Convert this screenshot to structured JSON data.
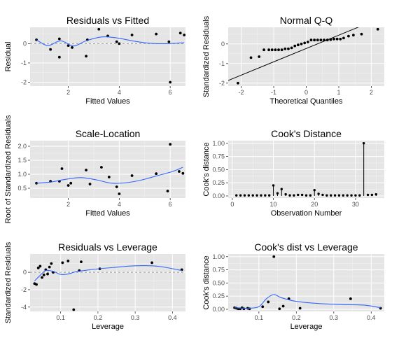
{
  "chart_data": [
    {
      "type": "scatter",
      "title": "Residuals vs Fitted",
      "xlabel": "Fitted Values",
      "ylabel": "Residual",
      "xlim": [
        0.5,
        6.6
      ],
      "ylim": [
        -2.2,
        0.85
      ],
      "xticks": [
        2,
        4,
        6
      ],
      "yticks": [
        -2,
        -1,
        0
      ],
      "hline": 0,
      "points": [
        [
          0.75,
          0.2
        ],
        [
          1.3,
          -0.3
        ],
        [
          1.65,
          -0.7
        ],
        [
          1.65,
          0.25
        ],
        [
          2.0,
          -0.1
        ],
        [
          2.15,
          -0.2
        ],
        [
          2.7,
          -0.65
        ],
        [
          2.75,
          0.2
        ],
        [
          3.2,
          0.75
        ],
        [
          3.55,
          0.4
        ],
        [
          3.9,
          0.1
        ],
        [
          4.0,
          0.0
        ],
        [
          4.5,
          0.45
        ],
        [
          5.45,
          0.5
        ],
        [
          5.95,
          0.1
        ],
        [
          6.0,
          -2.0
        ],
        [
          6.4,
          0.55
        ],
        [
          6.55,
          0.45
        ]
      ],
      "smooth": [
        [
          0.75,
          0.2
        ],
        [
          1.2,
          -0.1
        ],
        [
          1.7,
          0.15
        ],
        [
          2.2,
          -0.12
        ],
        [
          2.7,
          0.15
        ],
        [
          3.3,
          0.35
        ],
        [
          3.9,
          0.3
        ],
        [
          4.5,
          0.15
        ],
        [
          5.2,
          0.02
        ],
        [
          5.9,
          0.0
        ],
        [
          6.55,
          0.05
        ]
      ]
    },
    {
      "type": "scatter",
      "title": "Normal Q-Q",
      "xlabel": "Theoretical Quantiles",
      "ylabel": "Standardized Residuals",
      "xlim": [
        -2.4,
        2.4
      ],
      "ylim": [
        -2.15,
        0.85
      ],
      "xticks": [
        -2,
        -1,
        0,
        1,
        2
      ],
      "yticks": [
        -2,
        -1,
        0
      ],
      "abline": [
        [
          -2.6,
          -2.0
        ],
        [
          2.4,
          1.4
        ]
      ],
      "points": [
        [
          -2.1,
          -2.0
        ],
        [
          -1.7,
          -0.7
        ],
        [
          -1.45,
          -0.65
        ],
        [
          -1.3,
          -0.3
        ],
        [
          -1.15,
          -0.3
        ],
        [
          -1.05,
          -0.3
        ],
        [
          -0.95,
          -0.3
        ],
        [
          -0.85,
          -0.3
        ],
        [
          -0.75,
          -0.3
        ],
        [
          -0.65,
          -0.25
        ],
        [
          -0.55,
          -0.25
        ],
        [
          -0.45,
          -0.2
        ],
        [
          -0.35,
          -0.1
        ],
        [
          -0.25,
          -0.05
        ],
        [
          -0.15,
          0.0
        ],
        [
          -0.05,
          0.05
        ],
        [
          0.05,
          0.1
        ],
        [
          0.15,
          0.2
        ],
        [
          0.25,
          0.2
        ],
        [
          0.35,
          0.2
        ],
        [
          0.45,
          0.2
        ],
        [
          0.55,
          0.2
        ],
        [
          0.65,
          0.2
        ],
        [
          0.75,
          0.22
        ],
        [
          0.85,
          0.25
        ],
        [
          0.95,
          0.25
        ],
        [
          1.05,
          0.25
        ],
        [
          1.15,
          0.3
        ],
        [
          1.3,
          0.4
        ],
        [
          1.45,
          0.45
        ],
        [
          1.7,
          0.5
        ],
        [
          2.2,
          0.75
        ]
      ]
    },
    {
      "type": "scatter",
      "title": "Scale-Location",
      "xlabel": "Fitted Values",
      "ylabel": "Root of Standardized Residuals",
      "xlim": [
        0.5,
        6.6
      ],
      "ylim": [
        0.15,
        2.2
      ],
      "xticks": [
        2,
        4,
        6
      ],
      "yticks": [
        0.5,
        1.0,
        1.5,
        2.0
      ],
      "ytick_labels": [
        "0.5",
        "1.0",
        "1.5",
        "2.0"
      ],
      "points": [
        [
          0.75,
          0.68
        ],
        [
          1.3,
          0.75
        ],
        [
          1.65,
          0.75
        ],
        [
          1.75,
          1.2
        ],
        [
          2.0,
          0.6
        ],
        [
          2.1,
          0.68
        ],
        [
          2.7,
          1.15
        ],
        [
          2.85,
          0.65
        ],
        [
          3.3,
          1.25
        ],
        [
          3.6,
          0.9
        ],
        [
          3.9,
          0.55
        ],
        [
          4.0,
          0.3
        ],
        [
          4.5,
          0.95
        ],
        [
          5.45,
          1.02
        ],
        [
          5.9,
          0.4
        ],
        [
          6.0,
          2.07
        ],
        [
          6.35,
          1.1
        ],
        [
          6.5,
          1.03
        ]
      ],
      "smooth": [
        [
          0.75,
          0.68
        ],
        [
          1.3,
          0.72
        ],
        [
          1.9,
          0.82
        ],
        [
          2.5,
          0.88
        ],
        [
          3.1,
          0.8
        ],
        [
          3.7,
          0.68
        ],
        [
          4.3,
          0.7
        ],
        [
          4.9,
          0.8
        ],
        [
          5.5,
          0.95
        ],
        [
          6.1,
          1.1
        ],
        [
          6.5,
          1.25
        ]
      ]
    },
    {
      "type": "bar",
      "title": "Cook's Distance",
      "xlabel": "Observation Number",
      "ylabel": "Cook's distance",
      "xlim": [
        -1,
        37
      ],
      "ylim": [
        -0.04,
        1.05
      ],
      "xticks": [
        0,
        10,
        20,
        30
      ],
      "yticks": [
        0.0,
        0.25,
        0.5,
        0.75,
        1.0
      ],
      "ytick_labels": [
        "0.00",
        "0.25",
        "0.50",
        "0.75",
        "1.00"
      ],
      "x": [
        1,
        2,
        3,
        4,
        5,
        6,
        7,
        8,
        9,
        10,
        11,
        12,
        13,
        14,
        15,
        16,
        17,
        18,
        19,
        20,
        21,
        22,
        23,
        24,
        25,
        26,
        27,
        28,
        29,
        30,
        31,
        32,
        33,
        34,
        35
      ],
      "values": [
        0.01,
        0.01,
        0.01,
        0.01,
        0.01,
        0.01,
        0.01,
        0.01,
        0.01,
        0.2,
        0.05,
        0.13,
        0.03,
        0.01,
        0.01,
        0.02,
        0.02,
        0.01,
        0.01,
        0.11,
        0.04,
        0.02,
        0.01,
        0.01,
        0.01,
        0.01,
        0.01,
        0.01,
        0.01,
        0.01,
        0.01,
        1.0,
        0.02,
        0.02,
        0.03
      ]
    },
    {
      "type": "scatter",
      "title": "Residuals vs Leverage",
      "xlabel": "Leverage",
      "ylabel": "Standardized Residuals",
      "xlim": [
        0.018,
        0.435
      ],
      "ylim": [
        -4.5,
        2.1
      ],
      "xticks": [
        0.1,
        0.2,
        0.3,
        0.4
      ],
      "yticks": [
        -4,
        -2,
        0
      ],
      "hline": 0,
      "points": [
        [
          0.03,
          -1.3
        ],
        [
          0.035,
          -1.4
        ],
        [
          0.04,
          0.5
        ],
        [
          0.045,
          0.7
        ],
        [
          0.05,
          -0.6
        ],
        [
          0.055,
          -0.3
        ],
        [
          0.06,
          0.3
        ],
        [
          0.065,
          -0.2
        ],
        [
          0.07,
          0.6
        ],
        [
          0.075,
          1.0
        ],
        [
          0.08,
          0.0
        ],
        [
          0.105,
          1.1
        ],
        [
          0.12,
          1.3
        ],
        [
          0.135,
          -4.3
        ],
        [
          0.15,
          0.2
        ],
        [
          0.155,
          1.2
        ],
        [
          0.205,
          0.4
        ],
        [
          0.345,
          1.1
        ],
        [
          0.425,
          0.3
        ]
      ],
      "smooth": [
        [
          0.03,
          -1.0
        ],
        [
          0.045,
          -0.35
        ],
        [
          0.06,
          0.2
        ],
        [
          0.08,
          0.1
        ],
        [
          0.1,
          -0.25
        ],
        [
          0.12,
          -0.2
        ],
        [
          0.14,
          0.05
        ],
        [
          0.18,
          0.3
        ],
        [
          0.24,
          0.55
        ],
        [
          0.3,
          0.75
        ],
        [
          0.36,
          0.7
        ],
        [
          0.425,
          0.2
        ]
      ]
    },
    {
      "type": "scatter",
      "title": "Cook's dist vs Leverage",
      "xlabel": "Leverage",
      "ylabel": "Cook's distance",
      "xlim": [
        0.018,
        0.435
      ],
      "ylim": [
        -0.04,
        1.05
      ],
      "xticks": [
        0.1,
        0.2,
        0.3,
        0.4
      ],
      "yticks": [
        0.0,
        0.25,
        0.5,
        0.75,
        1.0
      ],
      "ytick_labels": [
        "0.00",
        "0.25",
        "0.50",
        "0.75",
        "1.00"
      ],
      "points": [
        [
          0.035,
          0.03
        ],
        [
          0.04,
          0.02
        ],
        [
          0.045,
          0.01
        ],
        [
          0.05,
          0.01
        ],
        [
          0.055,
          0.03
        ],
        [
          0.06,
          0.01
        ],
        [
          0.07,
          0.02
        ],
        [
          0.075,
          0.01
        ],
        [
          0.11,
          0.05
        ],
        [
          0.125,
          0.14
        ],
        [
          0.14,
          1.0
        ],
        [
          0.155,
          0.01
        ],
        [
          0.165,
          0.06
        ],
        [
          0.18,
          0.2
        ],
        [
          0.21,
          0.02
        ],
        [
          0.345,
          0.2
        ],
        [
          0.425,
          0.02
        ]
      ],
      "smooth": [
        [
          0.035,
          0.03
        ],
        [
          0.07,
          0.02
        ],
        [
          0.1,
          0.05
        ],
        [
          0.12,
          0.2
        ],
        [
          0.14,
          0.28
        ],
        [
          0.16,
          0.22
        ],
        [
          0.2,
          0.15
        ],
        [
          0.26,
          0.11
        ],
        [
          0.32,
          0.09
        ],
        [
          0.38,
          0.08
        ],
        [
          0.425,
          0.03
        ]
      ]
    }
  ]
}
